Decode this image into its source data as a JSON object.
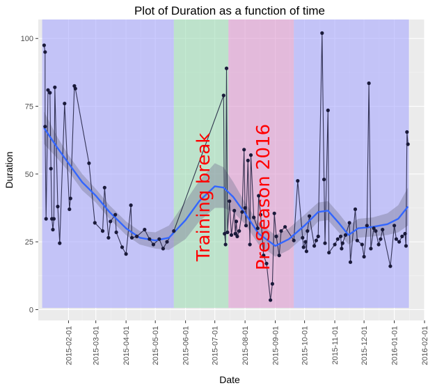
{
  "chart_data": {
    "type": "line",
    "title": "Plot of  Duration  as a function of time",
    "xlabel": "Date",
    "ylabel": "Duration",
    "x_axis_type": "date",
    "xlim": [
      "2015-01-01",
      "2016-02-01"
    ],
    "ylim": [
      -4,
      107
    ],
    "grid": true,
    "background": "#ebebeb",
    "x_ticks": [
      "2015-02-01",
      "2015-03-01",
      "2015-04-01",
      "2015-05-01",
      "2015-06-01",
      "2015-07-01",
      "2015-08-01",
      "2015-09-01",
      "2015-10-01",
      "2015-11-01",
      "2015-12-01",
      "2016-01-01",
      "2016-02-01"
    ],
    "y_ticks": [
      0,
      25,
      50,
      75,
      100
    ],
    "regions": [
      {
        "start": "2015-01-05",
        "end": "2015-05-20",
        "color": "#a9a9ff",
        "label": ""
      },
      {
        "start": "2015-05-20",
        "end": "2015-07-15",
        "color": "#9fdcb5",
        "label": "Training break"
      },
      {
        "start": "2015-07-15",
        "end": "2015-09-20",
        "color": "#dd9ad0",
        "label": "PreSeason 2016"
      },
      {
        "start": "2015-09-20",
        "end": "2016-01-16",
        "color": "#a9a9ff",
        "label": ""
      }
    ],
    "series": [
      {
        "line_color": "#1a1a3a",
        "point_color": "#1a1a3a",
        "points": [
          [
            "2015-01-07",
            97.5
          ],
          [
            "2015-01-08",
            95
          ],
          [
            "2015-01-08",
            67.5
          ],
          [
            "2015-01-09",
            33.5
          ],
          [
            "2015-01-11",
            81
          ],
          [
            "2015-01-13",
            80
          ],
          [
            "2015-01-14",
            52
          ],
          [
            "2015-01-15",
            33.5
          ],
          [
            "2015-01-16",
            29.5
          ],
          [
            "2015-01-17",
            33.5
          ],
          [
            "2015-01-18",
            82
          ],
          [
            "2015-01-21",
            38
          ],
          [
            "2015-01-23",
            24.5
          ],
          [
            "2015-01-28",
            76
          ],
          [
            "2015-02-02",
            37
          ],
          [
            "2015-02-03",
            41
          ],
          [
            "2015-02-07",
            82.5
          ],
          [
            "2015-02-08",
            81.5
          ],
          [
            "2015-02-22",
            54
          ],
          [
            "2015-02-28",
            32
          ],
          [
            "2015-03-08",
            29
          ],
          [
            "2015-03-10",
            45
          ],
          [
            "2015-03-14",
            26.5
          ],
          [
            "2015-03-16",
            32.5
          ],
          [
            "2015-03-21",
            35
          ],
          [
            "2015-03-22",
            28.5
          ],
          [
            "2015-03-28",
            23
          ],
          [
            "2015-04-01",
            20.5
          ],
          [
            "2015-04-06",
            38.5
          ],
          [
            "2015-04-07",
            26.5
          ],
          [
            "2015-04-12",
            27
          ],
          [
            "2015-04-20",
            29.5
          ],
          [
            "2015-04-25",
            26
          ],
          [
            "2015-04-29",
            24
          ],
          [
            "2015-05-05",
            26
          ],
          [
            "2015-05-09",
            22.5
          ],
          [
            "2015-05-13",
            25
          ],
          [
            "2015-05-20",
            29
          ],
          [
            "2015-07-10",
            79
          ],
          [
            "2015-07-11",
            28
          ],
          [
            "2015-07-12",
            24
          ],
          [
            "2015-07-13",
            89
          ],
          [
            "2015-07-14",
            28.5
          ],
          [
            "2015-07-16",
            40
          ],
          [
            "2015-07-18",
            27.5
          ],
          [
            "2015-07-21",
            36.5
          ],
          [
            "2015-07-22",
            28
          ],
          [
            "2015-07-23",
            32.5
          ],
          [
            "2015-07-24",
            27
          ],
          [
            "2015-07-26",
            29
          ],
          [
            "2015-07-29",
            36
          ],
          [
            "2015-07-31",
            59
          ],
          [
            "2015-08-01",
            37.5
          ],
          [
            "2015-08-02",
            31
          ],
          [
            "2015-08-04",
            55
          ],
          [
            "2015-08-06",
            24
          ],
          [
            "2015-08-07",
            57
          ],
          [
            "2015-08-10",
            34
          ],
          [
            "2015-08-14",
            30
          ],
          [
            "2015-08-15",
            42
          ],
          [
            "2015-08-17",
            35
          ],
          [
            "2015-08-20",
            20
          ],
          [
            "2015-08-23",
            17
          ],
          [
            "2015-08-27",
            3.5
          ],
          [
            "2015-08-29",
            9.5
          ],
          [
            "2015-08-31",
            35.5
          ],
          [
            "2015-09-02",
            27
          ],
          [
            "2015-09-05",
            20
          ],
          [
            "2015-09-07",
            29
          ],
          [
            "2015-09-11",
            30.5
          ],
          [
            "2015-09-20",
            25.5
          ],
          [
            "2015-09-24",
            47.5
          ],
          [
            "2015-09-29",
            26.5
          ],
          [
            "2015-09-30",
            23
          ],
          [
            "2015-10-02",
            25
          ],
          [
            "2015-10-03",
            21.5
          ],
          [
            "2015-10-04",
            29
          ],
          [
            "2015-10-06",
            34.5
          ],
          [
            "2015-10-11",
            23.5
          ],
          [
            "2015-10-13",
            25.5
          ],
          [
            "2015-10-15",
            27
          ],
          [
            "2015-10-19",
            102
          ],
          [
            "2015-10-21",
            48
          ],
          [
            "2015-10-22",
            24.5
          ],
          [
            "2015-10-25",
            73.5
          ],
          [
            "2015-10-26",
            21
          ],
          [
            "2015-11-01",
            24
          ],
          [
            "2015-11-04",
            26
          ],
          [
            "2015-11-07",
            27
          ],
          [
            "2015-11-08",
            22.5
          ],
          [
            "2015-11-09",
            24.5
          ],
          [
            "2015-11-12",
            27.5
          ],
          [
            "2015-11-16",
            32
          ],
          [
            "2015-11-17",
            17.5
          ],
          [
            "2015-11-22",
            37
          ],
          [
            "2015-11-24",
            25.5
          ],
          [
            "2015-11-29",
            24
          ],
          [
            "2015-12-01",
            19.5
          ],
          [
            "2015-12-04",
            31
          ],
          [
            "2015-12-06",
            83.5
          ],
          [
            "2015-12-08",
            22.5
          ],
          [
            "2015-12-11",
            30
          ],
          [
            "2015-12-13",
            29
          ],
          [
            "2015-12-16",
            24
          ],
          [
            "2015-12-18",
            26
          ],
          [
            "2015-12-20",
            29.5
          ],
          [
            "2015-12-28",
            16
          ],
          [
            "2016-01-01",
            31
          ],
          [
            "2016-01-03",
            26
          ],
          [
            "2016-01-06",
            25
          ],
          [
            "2016-01-09",
            27
          ],
          [
            "2016-01-12",
            28
          ],
          [
            "2016-01-13",
            23.5
          ],
          [
            "2016-01-14",
            65.5
          ],
          [
            "2016-01-15",
            61
          ]
        ]
      }
    ],
    "smooth": {
      "color": "#3366ff",
      "band_color": "#7f7f9a",
      "points": [
        [
          "2015-01-07",
          67,
          73,
          61
        ],
        [
          "2015-01-20",
          60,
          64,
          56
        ],
        [
          "2015-02-01",
          54,
          57,
          51
        ],
        [
          "2015-02-15",
          47,
          50,
          44
        ],
        [
          "2015-03-01",
          42,
          44.5,
          39.5
        ],
        [
          "2015-03-15",
          36,
          38.5,
          33.5
        ],
        [
          "2015-04-01",
          30,
          32.5,
          27.5
        ],
        [
          "2015-04-15",
          26.5,
          29,
          24
        ],
        [
          "2015-05-01",
          25.5,
          28.5,
          22.5
        ],
        [
          "2015-05-15",
          26.5,
          31,
          22
        ],
        [
          "2015-06-01",
          33,
          40,
          26
        ],
        [
          "2015-06-15",
          40,
          47.5,
          32.5
        ],
        [
          "2015-07-01",
          45.5,
          54,
          37.5
        ],
        [
          "2015-07-10",
          45,
          52.5,
          37.5
        ],
        [
          "2015-07-20",
          41.5,
          47,
          36
        ],
        [
          "2015-08-01",
          35.5,
          39.5,
          31.5
        ],
        [
          "2015-08-15",
          28,
          32,
          24
        ],
        [
          "2015-09-01",
          23.5,
          27.5,
          19.5
        ],
        [
          "2015-09-15",
          26,
          30,
          22
        ],
        [
          "2015-10-01",
          31,
          35,
          27
        ],
        [
          "2015-10-15",
          36,
          39.5,
          32.5
        ],
        [
          "2015-10-25",
          36.5,
          40,
          33
        ],
        [
          "2015-11-05",
          32,
          35.5,
          28.5
        ],
        [
          "2015-11-15",
          27.5,
          31,
          24
        ],
        [
          "2015-11-25",
          30,
          33.5,
          26.5
        ],
        [
          "2015-12-10",
          30.5,
          34,
          27
        ],
        [
          "2015-12-25",
          31.5,
          35.5,
          27.5
        ],
        [
          "2016-01-05",
          33.5,
          38.5,
          28.5
        ],
        [
          "2016-01-15",
          38,
          45,
          31
        ]
      ]
    }
  }
}
